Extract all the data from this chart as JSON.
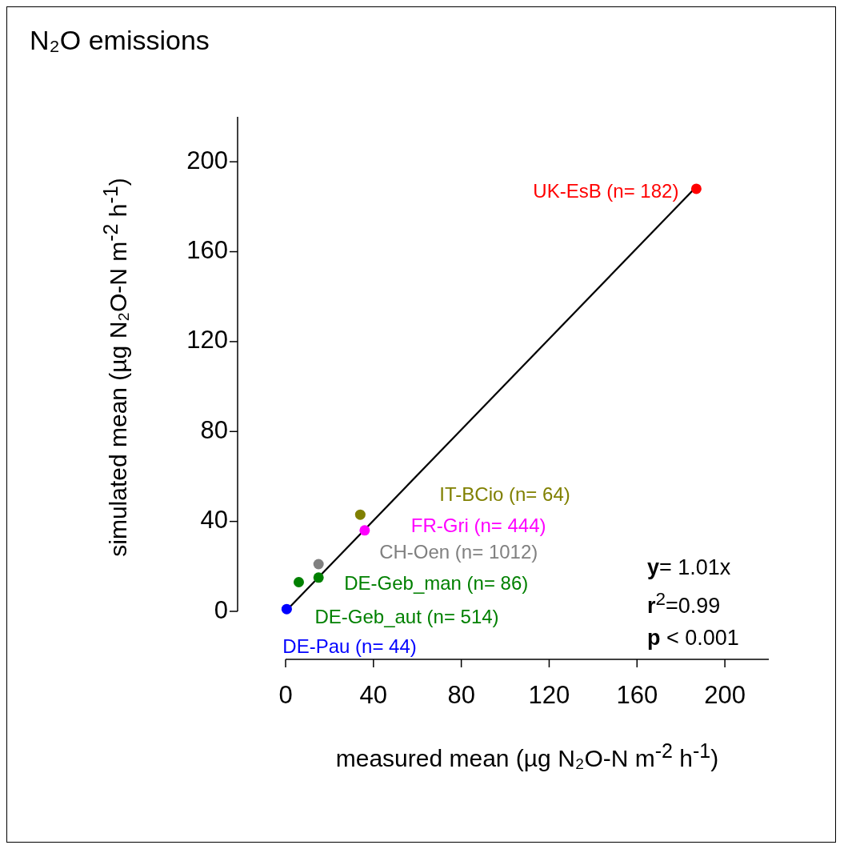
{
  "chart_data": {
    "type": "scatter",
    "title": "N₂O emissions",
    "xlabel": "measured mean (µg N₂O-N m$^{-2}$ h$^{-1}$)",
    "ylabel": "simulated mean (µg N₂O-N m$^{-2}$ h$^{-1}$)",
    "xlim": [
      0,
      220
    ],
    "ylim": [
      0,
      220
    ],
    "xticks": [
      0,
      40,
      80,
      120,
      160,
      200
    ],
    "yticks": [
      0,
      40,
      80,
      120,
      160,
      200
    ],
    "marker": "circle",
    "legend": false,
    "grid": false,
    "series": [
      {
        "name": "DE-Pau (n= 44)",
        "color": "#0000ff",
        "x": [
          0.5
        ],
        "values": [
          1
        ]
      },
      {
        "name": "DE-Geb_aut (n= 514)",
        "color": "#008000",
        "x": [
          6
        ],
        "values": [
          13
        ]
      },
      {
        "name": "DE-Geb_man (n= 86)",
        "color": "#008000",
        "x": [
          15
        ],
        "values": [
          15
        ]
      },
      {
        "name": "CH-Oen (n= 1012)",
        "color": "#808080",
        "x": [
          15
        ],
        "values": [
          21
        ]
      },
      {
        "name": "FR-Gri (n= 444)",
        "color": "#ff00ff",
        "x": [
          36
        ],
        "values": [
          36
        ]
      },
      {
        "name": "IT-BCio (n= 64)",
        "color": "#808000",
        "x": [
          34
        ],
        "values": [
          43
        ]
      },
      {
        "name": "UK-EsB (n= 182)",
        "color": "#ff0000",
        "x": [
          187
        ],
        "values": [
          188
        ]
      },
      {
        "type": "line",
        "color": "#000000",
        "marker": "none",
        "x": [
          0,
          187
        ],
        "values": [
          0,
          188.9
        ]
      }
    ],
    "annotations": [
      "y= 1.01x",
      "r$^{2}$=0.99",
      "p < 0.001"
    ]
  }
}
